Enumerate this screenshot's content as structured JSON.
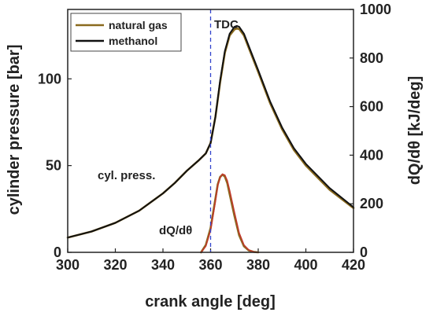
{
  "chart_data": {
    "type": "line",
    "xlabel": "crank angle [deg]",
    "ylabel": "cylinder pressure [bar]",
    "y2label": "dQ/dθ [kJ/deg]",
    "xlim": [
      300,
      420
    ],
    "ylim": [
      0,
      140
    ],
    "y2lim": [
      0,
      1000
    ],
    "xticks": [
      300,
      320,
      340,
      360,
      380,
      400,
      420
    ],
    "yticks": [
      0,
      50,
      100
    ],
    "y2ticks": [
      0,
      200,
      400,
      600,
      800,
      1000
    ],
    "legend_position": "top-left",
    "colors": {
      "natural_gas": "#8a6a1e",
      "methanol": "#111111",
      "methanol_hrr": "#c0392b",
      "tdc_line": "#3344cc"
    },
    "series": [
      {
        "name": "natural gas",
        "axis": "left",
        "x": [
          300,
          310,
          320,
          330,
          340,
          345,
          350,
          355,
          358,
          360,
          362,
          364,
          366,
          368,
          370,
          371,
          372,
          374,
          376,
          380,
          385,
          390,
          395,
          400,
          410,
          420
        ],
        "values": [
          8.5,
          12,
          17,
          24,
          34,
          40,
          47,
          53,
          57,
          63,
          78,
          98,
          115,
          125,
          128.5,
          129,
          128.7,
          125,
          118,
          104,
          86,
          71,
          59,
          50,
          36,
          25.5
        ]
      },
      {
        "name": "methanol",
        "axis": "left",
        "x": [
          300,
          310,
          320,
          330,
          340,
          345,
          350,
          355,
          358,
          360,
          362,
          364,
          366,
          368,
          370,
          371,
          372,
          374,
          376,
          380,
          385,
          390,
          395,
          400,
          410,
          420
        ],
        "values": [
          8.5,
          12,
          17,
          24,
          34,
          40,
          47,
          53,
          57,
          63,
          78,
          99,
          116,
          126,
          130,
          130.5,
          130,
          126,
          119,
          105,
          87,
          72,
          60,
          51,
          37,
          26
        ]
      },
      {
        "name": "natural gas",
        "axis": "right",
        "x": [
          356,
          358,
          360,
          362,
          363,
          364,
          365,
          366,
          367,
          368,
          370,
          372,
          374,
          376,
          378,
          380
        ],
        "values": [
          0,
          30,
          100,
          220,
          280,
          310,
          320,
          312,
          285,
          240,
          150,
          70,
          25,
          8,
          2,
          0
        ]
      },
      {
        "name": "methanol",
        "axis": "right",
        "x": [
          356,
          358,
          360,
          362,
          363,
          364,
          365,
          366,
          367,
          368,
          370,
          372,
          374,
          376,
          378,
          380
        ],
        "values": [
          0,
          25,
          90,
          210,
          275,
          308,
          322,
          318,
          295,
          255,
          165,
          80,
          30,
          10,
          2,
          0
        ]
      }
    ],
    "annotations": [
      {
        "text": "TDC",
        "x": 360
      },
      {
        "text": "cyl. press."
      },
      {
        "text": "dQ/dθ"
      }
    ]
  }
}
